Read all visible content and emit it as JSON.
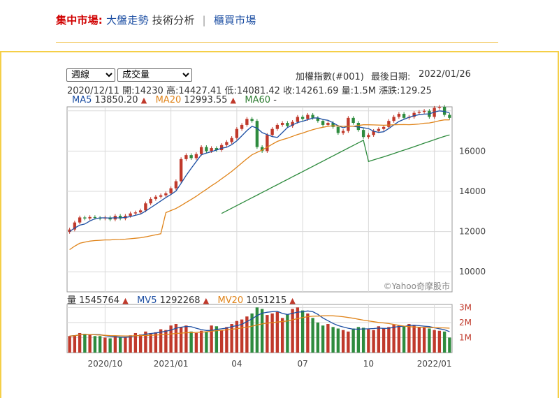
{
  "nav": {
    "label": "集中市場:",
    "link1": "大盤走勢",
    "link2": "技術分析",
    "separator": "|",
    "link3": "櫃買市場"
  },
  "controls": {
    "period_selected": "週線",
    "indicator_selected": "成交量"
  },
  "header": {
    "index_name": "加權指數(#001)",
    "last_date_label": "最後日期:",
    "last_date": "2022/01/26"
  },
  "ohlc": {
    "date": "2020/12/11",
    "open_label": "開:",
    "open": "14230",
    "high_label": "高:",
    "high": "14427.41",
    "low_label": "低:",
    "low": "14081.42",
    "close_label": "收:",
    "close": "14261.69",
    "volume_label": "量:",
    "volume": "1.5M",
    "change_label": "漲跌:",
    "change": "129.25"
  },
  "ma_legend": {
    "ma5_label": "MA5",
    "ma5": "13850.20",
    "ma20_label": "MA20",
    "ma20": "12993.55",
    "ma60_label": "MA60",
    "ma60": "-",
    "arrow": "▲"
  },
  "vol_legend": {
    "vol_label": "量",
    "vol": "1545764",
    "mv5_label": "MV5",
    "mv5": "1292268",
    "mv20_label": "MV20",
    "mv20": "1051215",
    "arrow": "▲"
  },
  "colors": {
    "up": "#c0392b",
    "down": "#2e8b3e",
    "ma5": "#1d4fa3",
    "ma20": "#e0841a",
    "ma60": "#2e8b3e",
    "grid": "#d9d9d9"
  },
  "chart_data": {
    "type": "candlestick",
    "frequency": "weekly",
    "x_ticks": [
      "2020/10",
      "2021/01",
      "04",
      "07",
      "10",
      "2022/01"
    ],
    "y_ticks": [
      10000,
      12000,
      14000,
      16000
    ],
    "ylim": [
      9000,
      18200
    ],
    "volume_ticks": [
      "1M",
      "2M",
      "3M"
    ],
    "volume_ylim": [
      0,
      3200000
    ],
    "watermark": "©Yahoo奇摩股市",
    "tick_positions": [
      7,
      20,
      33,
      46,
      59,
      72
    ],
    "closes": [
      12100,
      12450,
      12700,
      12650,
      12720,
      12680,
      12650,
      12700,
      12600,
      12780,
      12650,
      12780,
      12900,
      12950,
      13050,
      13400,
      13620,
      13730,
      13800,
      13900,
      14150,
      14500,
      15600,
      15800,
      15650,
      15850,
      16200,
      16000,
      16150,
      16050,
      16300,
      16450,
      16650,
      17100,
      17300,
      17600,
      17500,
      16200,
      16000,
      16800,
      17100,
      17300,
      17400,
      17250,
      17450,
      17700,
      17600,
      17800,
      17650,
      17500,
      17300,
      17400,
      17200,
      16900,
      17000,
      17650,
      17400,
      17050,
      16700,
      16800,
      17000,
      17100,
      17200,
      17500,
      17700,
      17850,
      17650,
      17700,
      17900,
      17950,
      18000,
      17700,
      18150,
      18200,
      17800,
      17650
    ],
    "volumes": [
      1100000,
      1150000,
      1300000,
      1250000,
      1200000,
      1100000,
      1100000,
      1000000,
      950000,
      1100000,
      1000000,
      1050000,
      1150000,
      1300000,
      1200000,
      1400000,
      1300000,
      1350000,
      1550000,
      1500000,
      1800000,
      1900000,
      1700000,
      1800000,
      1400000,
      1300000,
      1450000,
      1400000,
      1800000,
      1750000,
      1500000,
      1700000,
      1900000,
      2100000,
      2200000,
      2400000,
      2600000,
      3000000,
      2900000,
      2500000,
      2600000,
      2700000,
      2300000,
      2550000,
      2900000,
      3000000,
      2800000,
      2600000,
      2300000,
      2000000,
      1800000,
      1900000,
      1700000,
      1600000,
      1500000,
      1400000,
      1600000,
      1700000,
      1650000,
      1550000,
      1500000,
      1750000,
      1600000,
      1700000,
      1850000,
      1800000,
      1750000,
      1900000,
      1800000,
      1700000,
      1650000,
      1600000,
      1500000,
      1450000,
      1400000,
      1000000
    ],
    "series": [
      {
        "name": "MA5",
        "color": "#1d4fa3"
      },
      {
        "name": "MA20",
        "color": "#e0841a"
      },
      {
        "name": "MA60",
        "color": "#2e8b3e"
      }
    ],
    "volume_series": [
      {
        "name": "MV5",
        "color": "#1d4fa3"
      },
      {
        "name": "MV20",
        "color": "#e0841a"
      }
    ]
  }
}
